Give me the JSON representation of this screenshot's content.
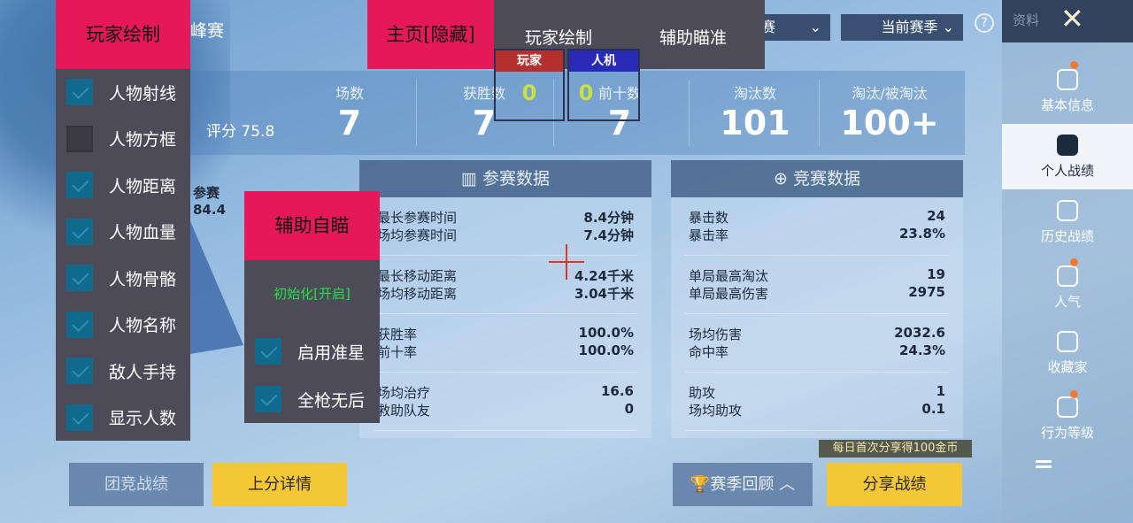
{
  "game": {
    "mode_title_partial": "峰赛",
    "dropdown_mode_partial": "赛",
    "dropdown_season": "当前赛季",
    "help_icon": "question-icon",
    "profile_label": "资料",
    "close_icon": "x-icon",
    "rating_label": "评分 75.8",
    "radar_label": "参赛",
    "radar_value": "84.4",
    "stats": [
      {
        "label": "场数",
        "value": "7"
      },
      {
        "label": "获胜数",
        "value": "7"
      },
      {
        "label": "前十数",
        "value": "7"
      },
      {
        "label": "淘汰数",
        "value": "101"
      },
      {
        "label": "淘汰/被淘汰",
        "value": "100+"
      }
    ],
    "participation": {
      "title": "参赛数据",
      "rows": [
        [
          [
            "最长参赛时间",
            "8.4分钟"
          ],
          [
            "场均参赛时间",
            "7.4分钟"
          ]
        ],
        [
          [
            "最长移动距离",
            "4.24千米"
          ],
          [
            "场均移动距离",
            "3.04千米"
          ]
        ],
        [
          [
            "获胜率",
            "100.0%"
          ],
          [
            "前十率",
            "100.0%"
          ]
        ],
        [
          [
            "场均治疗",
            "16.6"
          ],
          [
            "救助队友",
            "0"
          ]
        ]
      ]
    },
    "competition": {
      "title": "竞赛数据",
      "rows": [
        [
          [
            "暴击数",
            "24"
          ],
          [
            "暴击率",
            "23.8%"
          ]
        ],
        [
          [
            "单局最高淘汰",
            "19"
          ],
          [
            "单局最高伤害",
            "2975"
          ]
        ],
        [
          [
            "场均伤害",
            "2032.6"
          ],
          [
            "命中率",
            "24.3%"
          ]
        ],
        [
          [
            "助攻",
            "1"
          ],
          [
            "场均助攻",
            "0.1"
          ]
        ]
      ]
    },
    "sidebar": [
      "基本信息",
      "个人战绩",
      "历史战绩",
      "人气",
      "收藏家",
      "行为等级"
    ],
    "buttons": {
      "team": "团竞战绩",
      "rank": "上分详情",
      "season_review": "赛季回顾",
      "share": "分享战绩",
      "share_badge": "每日首次分享得100金币"
    }
  },
  "overlay": {
    "home": "主页[隐藏]",
    "tabs": [
      "玩家绘制",
      "辅助瞄准"
    ],
    "counter_player": {
      "label": "玩家",
      "value": "0"
    },
    "counter_bot": {
      "label": "人机",
      "value": "0"
    },
    "esp": {
      "title": "玩家绘制",
      "items": [
        {
          "label": "人物射线",
          "checked": true
        },
        {
          "label": "人物方框",
          "checked": false
        },
        {
          "label": "人物距离",
          "checked": true
        },
        {
          "label": "人物血量",
          "checked": true
        },
        {
          "label": "人物骨骼",
          "checked": true
        },
        {
          "label": "人物名称",
          "checked": true
        },
        {
          "label": "敌人手持",
          "checked": true
        },
        {
          "label": "显示人数",
          "checked": true
        }
      ]
    },
    "aim": {
      "title": "辅助自瞄",
      "status": "初始化[开启]",
      "status_color": "#22e04a",
      "items": [
        {
          "label": "启用准星",
          "checked": true
        },
        {
          "label": "全枪无后",
          "checked": true
        }
      ]
    },
    "crosshair_color": "#e8302e"
  }
}
